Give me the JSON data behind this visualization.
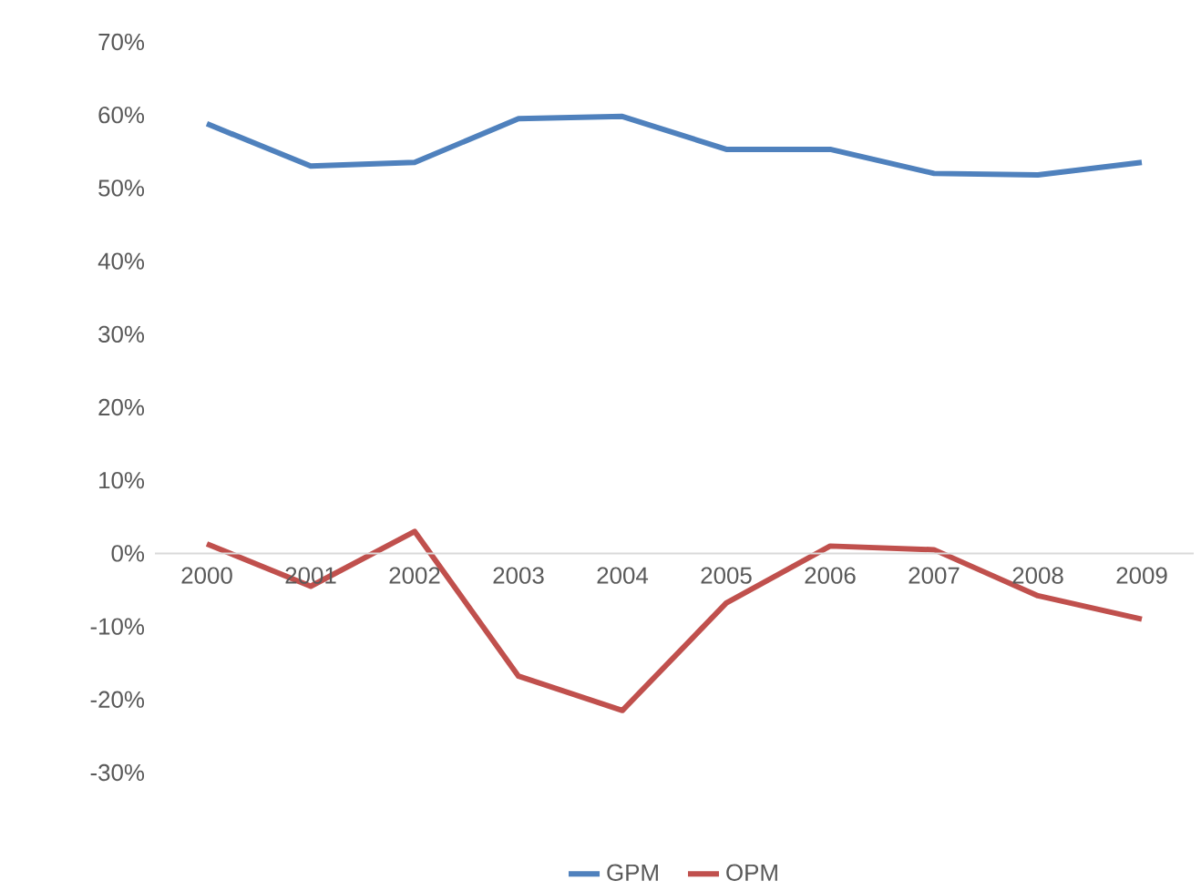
{
  "chart_data": {
    "type": "line",
    "categories": [
      "2000",
      "2001",
      "2002",
      "2003",
      "2004",
      "2005",
      "2006",
      "2007",
      "2008",
      "2009"
    ],
    "series": [
      {
        "name": "GPM",
        "color": "#4f81bd",
        "values": [
          58.8,
          53,
          53.5,
          59.5,
          59.8,
          55.3,
          55.3,
          52,
          51.8,
          53.5
        ]
      },
      {
        "name": "OPM",
        "color": "#c0504d",
        "values": [
          1.3,
          -4.5,
          3,
          -16.8,
          -21.5,
          -6.8,
          1,
          0.5,
          -5.8,
          -9
        ]
      }
    ],
    "ylim": [
      -30,
      70
    ],
    "yticks": [
      {
        "value": -30,
        "label": "-30%"
      },
      {
        "value": -20,
        "label": "-20%"
      },
      {
        "value": -10,
        "label": "-10%"
      },
      {
        "value": 0,
        "label": "0%"
      },
      {
        "value": 10,
        "label": "10%"
      },
      {
        "value": 20,
        "label": "20%"
      },
      {
        "value": 30,
        "label": "30%"
      },
      {
        "value": 40,
        "label": "40%"
      },
      {
        "value": 50,
        "label": "50%"
      },
      {
        "value": 60,
        "label": "60%"
      },
      {
        "value": 70,
        "label": "70%"
      }
    ],
    "grid": false,
    "legend": "bottom",
    "marker": "none",
    "line_style": "solid"
  }
}
